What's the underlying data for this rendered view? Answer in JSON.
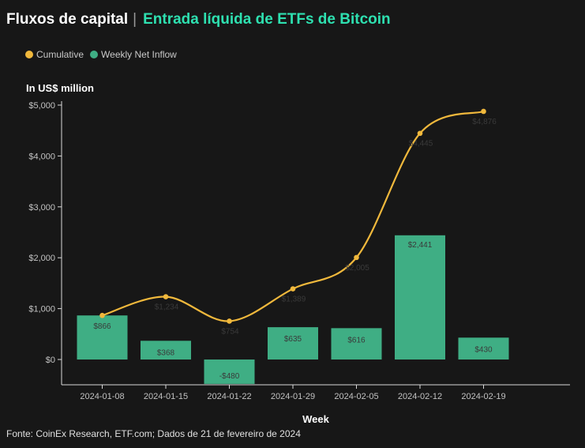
{
  "header": {
    "title": "Fluxos de capital",
    "separator": "|",
    "subtitle": "Entrada líquida de ETFs de Bitcoin"
  },
  "colors": {
    "cumulative": "#f0b83c",
    "bars": "#3fae84",
    "subtitle": "#2ee0b0",
    "background": "#171717"
  },
  "chart_data": {
    "type": "bar",
    "unit_label": "In US$ million",
    "xlabel": "Week",
    "categories": [
      "2024-01-08",
      "2024-01-15",
      "2024-01-22",
      "2024-01-29",
      "2024-02-05",
      "2024-02-12",
      "2024-02-19"
    ],
    "series": [
      {
        "name": "Weekly Net Inflow",
        "kind": "bar",
        "values": [
          866,
          368,
          -480,
          635,
          616,
          2441,
          430
        ],
        "labels": [
          "$866",
          "$368",
          "-$480",
          "$635",
          "$616",
          "$2,441",
          "$430"
        ]
      },
      {
        "name": "Cumulative",
        "kind": "line",
        "values": [
          866,
          1234,
          754,
          1389,
          2005,
          4445,
          4876
        ],
        "labels": [
          "$866",
          "$1,234",
          "$754",
          "$1,389",
          "$2,005",
          "$4,445",
          "$4,876"
        ]
      }
    ],
    "yticks": [
      0,
      1000,
      2000,
      3000,
      4000,
      5000
    ],
    "ytick_labels": [
      "$0",
      "$1,000",
      "$2,000",
      "$3,000",
      "$4,000",
      "$5,000"
    ],
    "ylim": [
      -500,
      5000
    ],
    "grid": false,
    "legend": "top-left"
  },
  "source": "Fonte: CoinEx Research, ETF.com; Dados de 21 de fevereiro de 2024"
}
